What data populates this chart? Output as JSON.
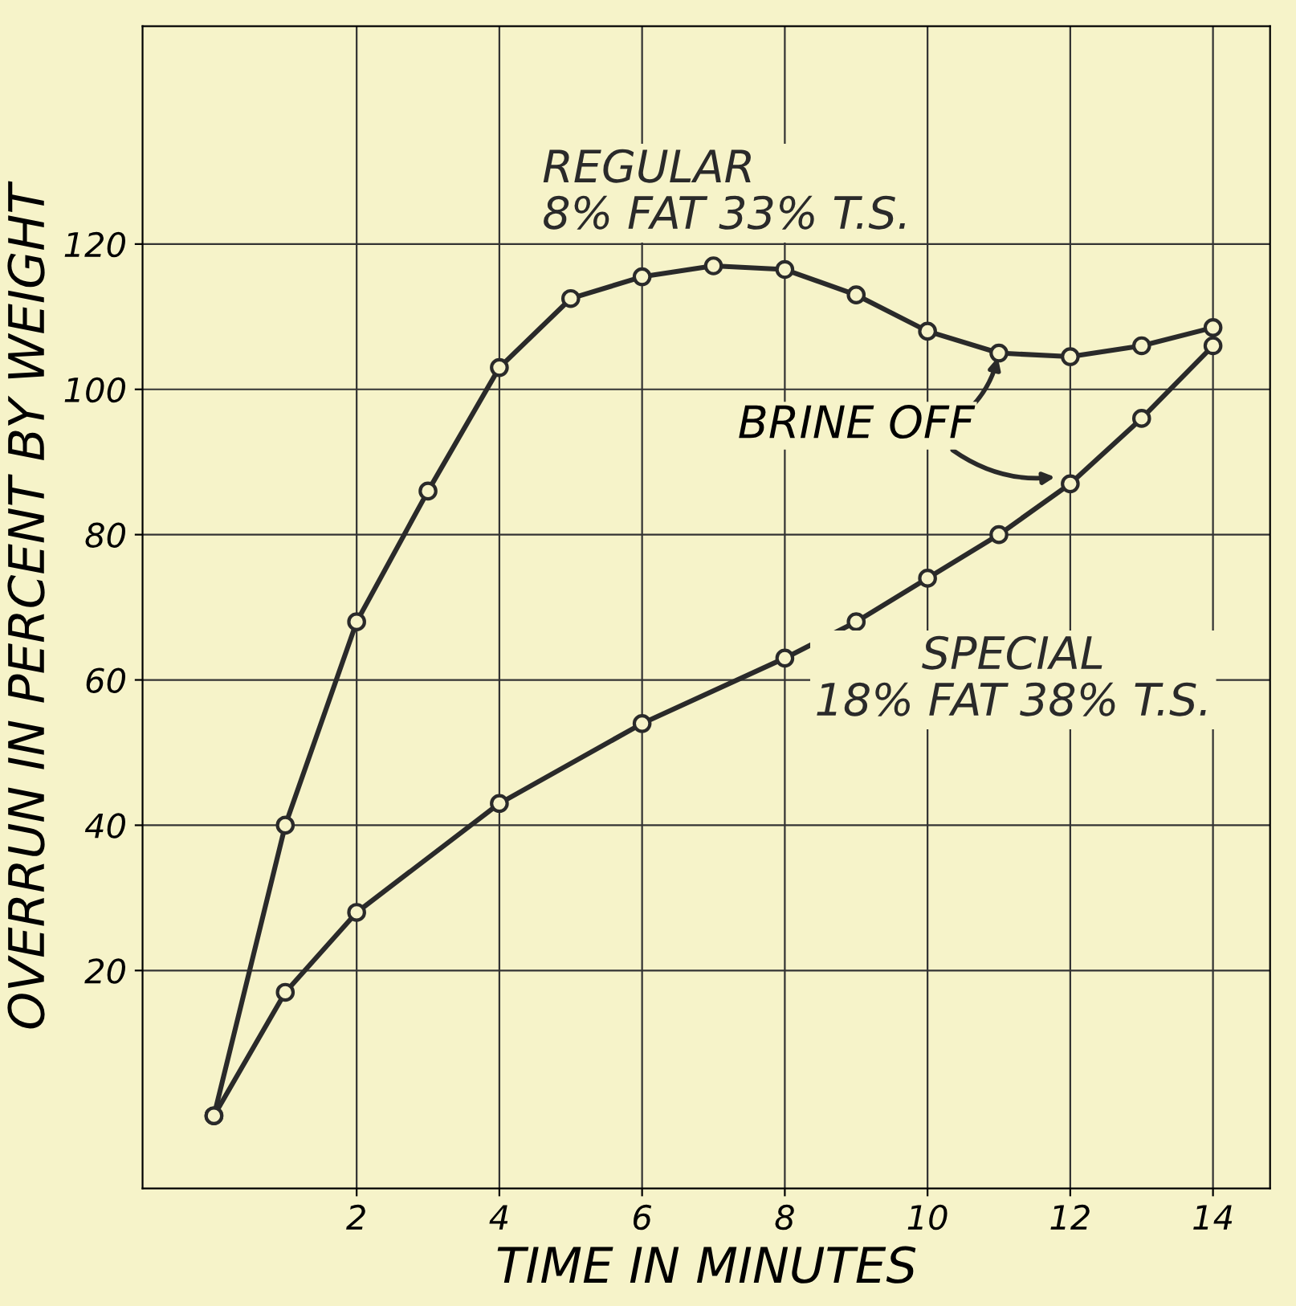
{
  "chart_data": {
    "type": "line",
    "xlabel": "TIME IN MINUTES",
    "ylabel": "OVERRUN IN PERCENT BY WEIGHT",
    "xlim": [
      -1,
      14.8
    ],
    "ylim": [
      -10,
      150
    ],
    "xticks": [
      2,
      4,
      6,
      8,
      10,
      12,
      14
    ],
    "yticks": [
      20,
      40,
      60,
      80,
      100,
      120
    ],
    "grid": true,
    "marker": "circle",
    "line_style": "solid",
    "legend": false,
    "series": [
      {
        "name": "REGULAR\n8% FAT 33% T.S.",
        "color": "#2a2a2a",
        "x": [
          0,
          1,
          2,
          3,
          4,
          5,
          6,
          7,
          8,
          9,
          10,
          11,
          12,
          13,
          14
        ],
        "values": [
          0,
          40,
          68,
          86,
          103,
          112.5,
          115.5,
          117,
          116.5,
          113,
          108,
          105,
          104.5,
          106,
          108.5
        ]
      },
      {
        "name": "SPECIAL\n18% FAT 38% T.S.",
        "color": "#2a2a2a",
        "x": [
          0,
          1,
          2,
          4,
          6,
          8,
          9,
          10,
          11,
          12,
          13,
          14
        ],
        "values": [
          0,
          17,
          28,
          43,
          54,
          63,
          68,
          74,
          80,
          87,
          96,
          106
        ]
      }
    ],
    "annotations": [
      {
        "text": "BRINE OFF",
        "x": 11,
        "y": 105
      }
    ]
  }
}
